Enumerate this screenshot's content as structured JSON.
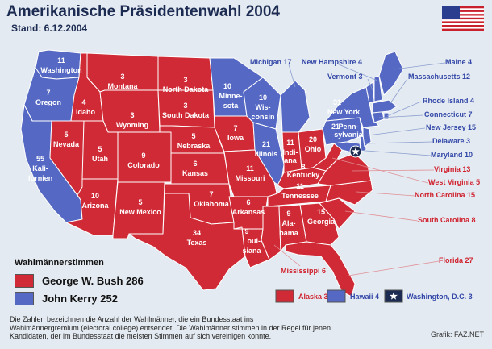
{
  "header": {
    "title": "Amerikanische Präsidentenwahl 2004",
    "subtitle": "Stand: 6.12.2004"
  },
  "colors": {
    "bush": "#cf2a35",
    "kerry": "#5468c4",
    "water": "#e4eaf1",
    "border": "#ffffff",
    "label_bush": "#d0222e",
    "label_kerry": "#3247a8"
  },
  "legend": {
    "title": "Wahlmännerstimmen",
    "bush": "George W. Bush 286",
    "kerry": "John Kerry 252"
  },
  "states": {
    "wa": {
      "num": "11",
      "name": "Washington"
    },
    "or": {
      "num": "7",
      "name": "Oregon"
    },
    "ca": {
      "num": "55",
      "name1": "Kali-",
      "name2": "fornien"
    },
    "nv": {
      "num": "5",
      "name": "Nevada"
    },
    "id": {
      "num": "4",
      "name": "Idaho"
    },
    "mt": {
      "num": "3",
      "name": "Montana"
    },
    "wy": {
      "num": "3",
      "name": "Wyoming"
    },
    "ut": {
      "num": "5",
      "name": "Utah"
    },
    "az": {
      "num": "10",
      "name": "Arizona"
    },
    "co": {
      "num": "9",
      "name": "Colorado"
    },
    "nm": {
      "num": "5",
      "name": "New Mexico"
    },
    "nd": {
      "num": "3",
      "name": "North Dakota"
    },
    "sd": {
      "num": "3",
      "name": "South Dakota"
    },
    "ne": {
      "num": "5",
      "name": "Nebraska"
    },
    "ks": {
      "num": "6",
      "name": "Kansas"
    },
    "ok": {
      "num": "7",
      "name": "Oklahoma"
    },
    "tx": {
      "num": "34",
      "name": "Texas"
    },
    "mn": {
      "num": "10",
      "name1": "Minne-",
      "name2": "sota"
    },
    "ia": {
      "num": "7",
      "name": "Iowa"
    },
    "mo": {
      "num": "11",
      "name": "Missouri"
    },
    "ar": {
      "num": "6",
      "name": "Arkansas"
    },
    "la": {
      "num": "9",
      "name1": "Loui-",
      "name2": "siana"
    },
    "wi": {
      "num": "10",
      "name1": "Wis-",
      "name2": "consin"
    },
    "il": {
      "num": "21",
      "name": "Illinois"
    },
    "in": {
      "num": "11",
      "name1": "Indi-",
      "name2": "ana"
    },
    "oh": {
      "num": "20",
      "name": "Ohio"
    },
    "ky": {
      "num": "8",
      "name": "Kentucky"
    },
    "tn": {
      "num": "11",
      "name": "Tennessee"
    },
    "ms": {
      "num": "",
      "name": ""
    },
    "al": {
      "num": "9",
      "name1": "Ala-",
      "name2": "bama"
    },
    "ga": {
      "num": "15",
      "name": "Georgia"
    },
    "fl": {
      "num": "",
      "name": ""
    },
    "sc": {
      "num": "",
      "name": ""
    },
    "nc": {
      "num": "",
      "name": ""
    },
    "va": {
      "num": "",
      "name": ""
    },
    "wv": {
      "num": "",
      "name": ""
    },
    "pa": {
      "num": "21",
      "name1": "Penn-",
      "name2": "sylvania"
    },
    "ny": {
      "num": "31",
      "name": "New York"
    },
    "mi": {
      "num": "",
      "name": ""
    }
  },
  "callouts": {
    "michigan": "Michigan 17",
    "new_hampshire": "New Hampshire 4",
    "maine": "Maine 4",
    "vermont": "Vermont 3",
    "massachusetts": "Massachusetts 12",
    "rhode_island": "Rhode Island 4",
    "connecticut": "Connecticut 7",
    "new_jersey": "New Jersey 15",
    "delaware": "Delaware 3",
    "maryland": "Maryland 10",
    "virginia": "Virginia 13",
    "west_virginia": "West Virginia 5",
    "north_carolina": "North Carolina 15",
    "south_carolina": "South Carolina 8",
    "florida": "Florida 27",
    "mississippi": "Mississippi 6"
  },
  "insets": {
    "alaska": "Alaska 3",
    "hawaii": "Hawaii 4",
    "dc": "Washington, D.C. 3"
  },
  "footer": {
    "line1": "Die Zahlen bezeichnen die Anzahl der Wahlmänner, die ein Bundesstaat ins",
    "line2": "Wahlmännergremium (electoral college) entsendet. Die Wahlmänner stimmen in der Regel für jenen",
    "line3": "Kandidaten, der im Bundesstaat die meisten Stimmen auf sich vereinigen konnte.",
    "credit": "Grafik: FAZ.NET"
  },
  "icons": {
    "flag": "us-flag-icon",
    "dc_star": "star-icon"
  }
}
